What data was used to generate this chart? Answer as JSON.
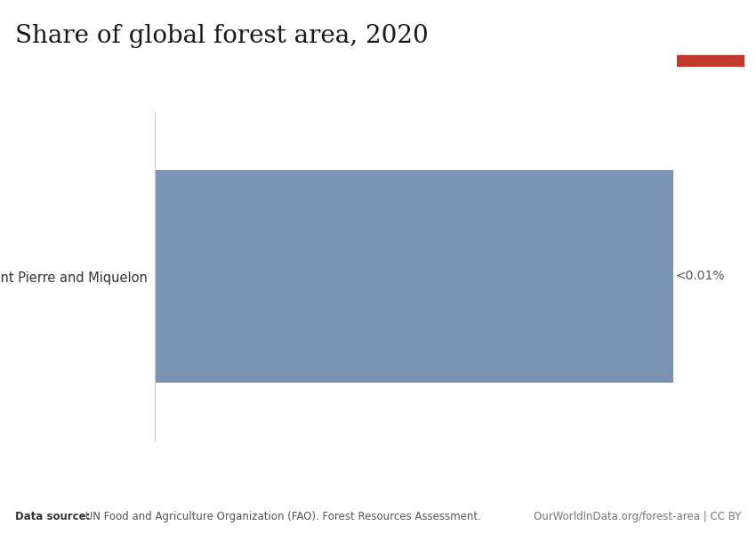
{
  "title": "Share of global forest area, 2020",
  "bar_label": "Saint Pierre and Miquelon",
  "bar_color": "#7b93b4",
  "bar_annotation": "<0.01%",
  "data_source_bold": "Data source:",
  "data_source_text": " UN Food and Agriculture Organization (FAO). Forest Resources Assessment.",
  "data_source_right": "OurWorldInData.org/forest-area | CC BY",
  "logo_bg": "#1a3050",
  "logo_red": "#c0392b",
  "background_color": "#ffffff",
  "title_fontsize": 20,
  "annotation_fontsize": 10,
  "label_fontsize": 10.5,
  "footer_fontsize": 8.5
}
